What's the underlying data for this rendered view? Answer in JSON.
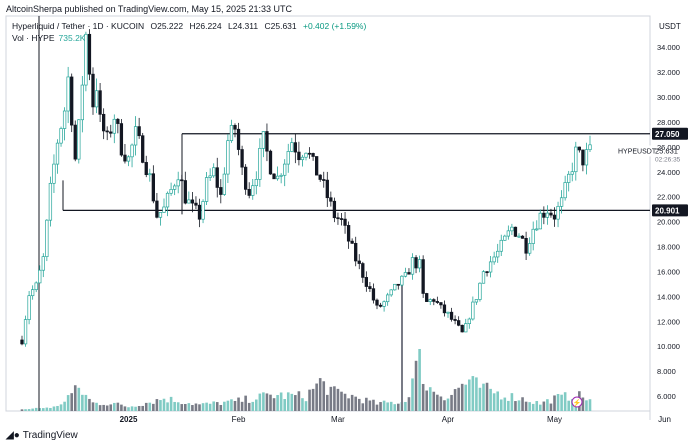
{
  "header": {
    "publisher": "AltcoinSherpa published on TradingView.com, May 15, 2025 21:33 UTC"
  },
  "legend": {
    "symbol": "Hyperliquid / Tether · 1D · KUCOIN",
    "open": "O25.222",
    "high": "H26.224",
    "low": "L24.311",
    "close": "C25.631",
    "change": "+0.402 (+1.59%)",
    "vol_label": "Vol · HYPE",
    "vol_value": "735.2K"
  },
  "price_scale": {
    "currency": "USDT"
  },
  "price_tag": {
    "symbol": "HYPEUSDT",
    "price": "25.631",
    "countdown": "02:26:35"
  },
  "level_tags": {
    "upper": "27.050",
    "lower": "20.901"
  },
  "footer": {
    "brand": "TradingView"
  },
  "colors": {
    "up": "#26a69a",
    "down": "#131722",
    "up_vol": "#80cbc4",
    "down_vol": "#787b86"
  },
  "chart_data": {
    "type": "candlestick",
    "ylim": [
      4.8,
      36.5
    ],
    "yticks": [
      "34.000",
      "32.000",
      "30.000",
      "28.000",
      "26.000",
      "24.000",
      "22.000",
      "20.000",
      "18.000",
      "16.000",
      "14.000",
      "12.000",
      "10.000",
      "8.000",
      "6.000"
    ],
    "xticks": [
      {
        "label": "2025",
        "day": 30
      },
      {
        "label": "Feb",
        "day": 61
      },
      {
        "label": "Mar",
        "day": 89
      },
      {
        "label": "Apr",
        "day": 120
      },
      {
        "label": "May",
        "day": 150
      },
      {
        "label": "Jun",
        "day": 181
      }
    ],
    "horizontal_levels": [
      27.05,
      20.901
    ],
    "anchors": [
      [
        0,
        10.5
      ],
      [
        2,
        14.2
      ],
      [
        4,
        14.8
      ],
      [
        6,
        17.0
      ],
      [
        8,
        22.5
      ],
      [
        10,
        26.5
      ],
      [
        12,
        29.0
      ],
      [
        13,
        31.5
      ],
      [
        14,
        28.5
      ],
      [
        15,
        25.0
      ],
      [
        16,
        27.5
      ],
      [
        18,
        35.0
      ],
      [
        20,
        29.5
      ],
      [
        21,
        31.0
      ],
      [
        22,
        28.0
      ],
      [
        24,
        26.5
      ],
      [
        26,
        28.5
      ],
      [
        28,
        26.0
      ],
      [
        30,
        25.0
      ],
      [
        32,
        27.0
      ],
      [
        34,
        25.5
      ],
      [
        36,
        23.5
      ],
      [
        38,
        20.5
      ],
      [
        40,
        21.0
      ],
      [
        42,
        22.5
      ],
      [
        44,
        24.0
      ],
      [
        46,
        22.0
      ],
      [
        48,
        21.0
      ],
      [
        50,
        20.5
      ],
      [
        52,
        23.0
      ],
      [
        54,
        24.0
      ],
      [
        56,
        22.0
      ],
      [
        58,
        26.5
      ],
      [
        60,
        27.5
      ],
      [
        62,
        24.0
      ],
      [
        64,
        22.5
      ],
      [
        66,
        24.0
      ],
      [
        68,
        26.5
      ],
      [
        70,
        24.5
      ],
      [
        72,
        23.5
      ],
      [
        74,
        25.0
      ],
      [
        76,
        26.5
      ],
      [
        78,
        25.5
      ],
      [
        80,
        26.0
      ],
      [
        82,
        24.5
      ],
      [
        84,
        23.5
      ],
      [
        86,
        22.0
      ],
      [
        88,
        20.5
      ],
      [
        90,
        20.0
      ],
      [
        92,
        18.5
      ],
      [
        94,
        17.0
      ],
      [
        96,
        15.8
      ],
      [
        98,
        14.5
      ],
      [
        100,
        13.0
      ],
      [
        102,
        13.5
      ],
      [
        104,
        14.2
      ],
      [
        106,
        15.0
      ],
      [
        108,
        15.5
      ],
      [
        110,
        16.8
      ],
      [
        112,
        16.5
      ],
      [
        113,
        14.0
      ],
      [
        114,
        13.5
      ],
      [
        116,
        13.8
      ],
      [
        118,
        13.0
      ],
      [
        120,
        12.5
      ],
      [
        122,
        11.8
      ],
      [
        124,
        11.0
      ],
      [
        125,
        11.5
      ],
      [
        126,
        12.5
      ],
      [
        128,
        14.0
      ],
      [
        130,
        16.0
      ],
      [
        132,
        16.8
      ],
      [
        134,
        17.5
      ],
      [
        136,
        18.5
      ],
      [
        138,
        19.5
      ],
      [
        140,
        19.0
      ],
      [
        142,
        18.0
      ],
      [
        144,
        19.5
      ],
      [
        146,
        20.5
      ],
      [
        148,
        21.0
      ],
      [
        150,
        20.5
      ],
      [
        152,
        21.5
      ],
      [
        154,
        23.5
      ],
      [
        156,
        25.5
      ],
      [
        158,
        25.0
      ],
      [
        160,
        25.6
      ]
    ],
    "volume_profile": [
      [
        0,
        0.03
      ],
      [
        10,
        0.08
      ],
      [
        13,
        0.28
      ],
      [
        16,
        0.42
      ],
      [
        20,
        0.15
      ],
      [
        26,
        0.14
      ],
      [
        30,
        0.08
      ],
      [
        34,
        0.14
      ],
      [
        40,
        0.24
      ],
      [
        50,
        0.12
      ],
      [
        60,
        0.18
      ],
      [
        70,
        0.3
      ],
      [
        80,
        0.28
      ],
      [
        84,
        0.55
      ],
      [
        88,
        0.35
      ],
      [
        92,
        0.3
      ],
      [
        100,
        0.14
      ],
      [
        108,
        0.18
      ],
      [
        112,
        1.0
      ],
      [
        114,
        0.45
      ],
      [
        120,
        0.26
      ],
      [
        124,
        0.5
      ],
      [
        126,
        0.55
      ],
      [
        130,
        0.42
      ],
      [
        136,
        0.3
      ],
      [
        142,
        0.22
      ],
      [
        146,
        0.14
      ],
      [
        150,
        0.24
      ],
      [
        154,
        0.28
      ],
      [
        156,
        0.3
      ],
      [
        160,
        0.22
      ]
    ]
  }
}
